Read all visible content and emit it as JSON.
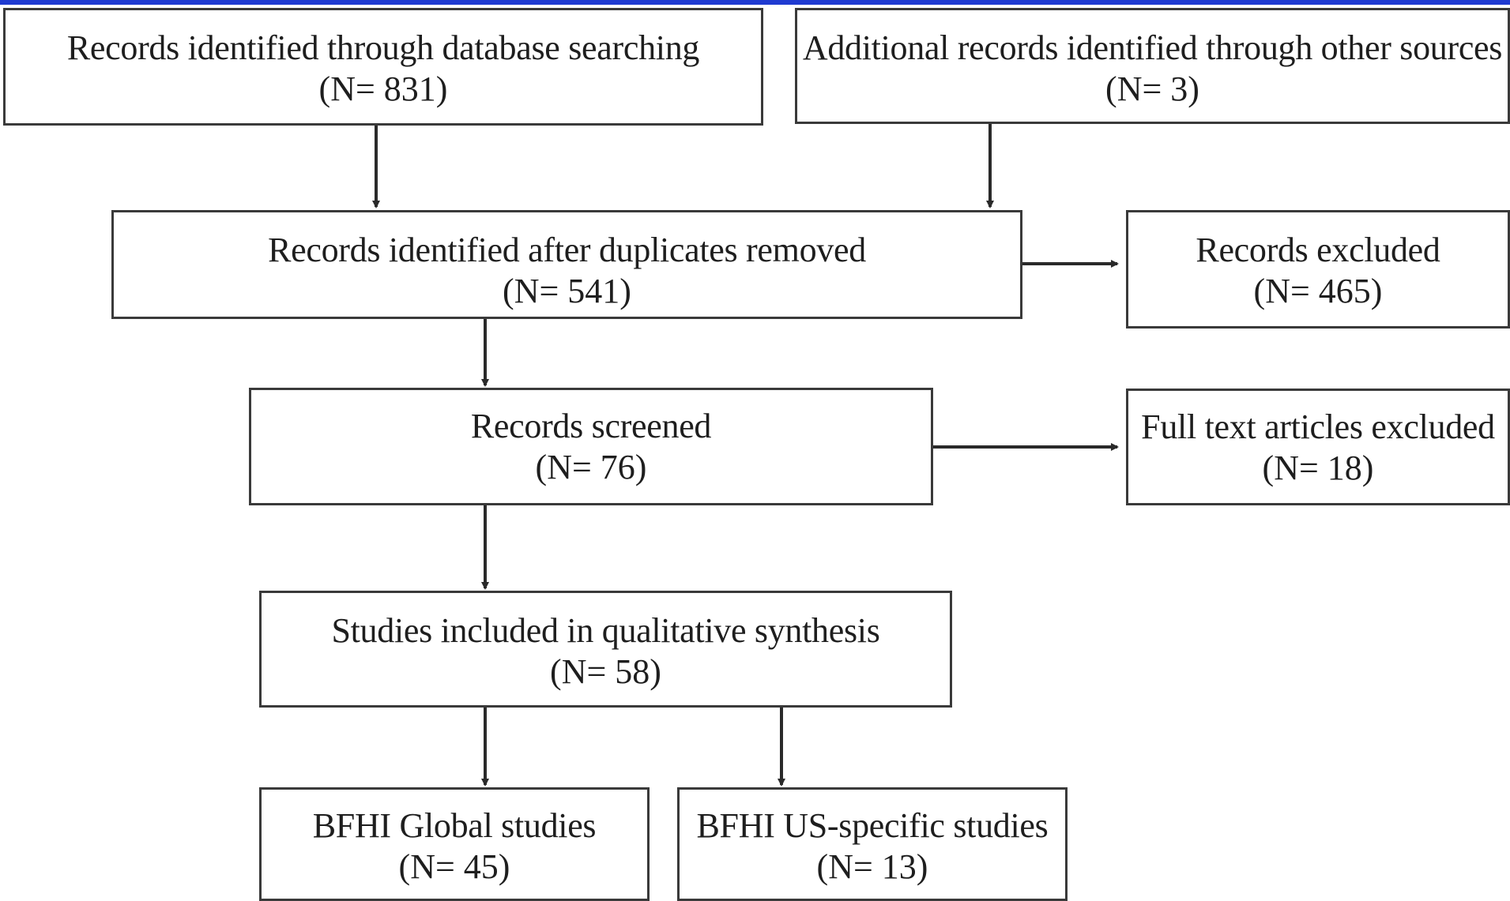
{
  "flowchart": {
    "identification_db": {
      "label": "Records identified through database searching",
      "count": "(N= 831)"
    },
    "identification_other": {
      "label": "Additional records identified through other sources",
      "count": "(N= 3)"
    },
    "after_duplicates": {
      "label": "Records identified after duplicates removed",
      "count": "(N= 541)"
    },
    "records_excluded": {
      "label": "Records excluded",
      "count": "(N= 465)"
    },
    "screened": {
      "label": "Records screened",
      "count": "(N= 76)"
    },
    "fulltext_excluded": {
      "label": "Full text articles excluded",
      "count": "(N= 18)"
    },
    "included": {
      "label": "Studies included in qualitative synthesis",
      "count": "(N= 58)"
    },
    "global_studies": {
      "label": "BFHI Global studies",
      "count": "(N= 45)"
    },
    "us_studies": {
      "label": "BFHI US-specific studies",
      "count": "(N= 13)"
    }
  },
  "colors": {
    "top_rule": "#1f3bd1",
    "border": "#3a3a3a",
    "text": "#1e1e1e"
  }
}
